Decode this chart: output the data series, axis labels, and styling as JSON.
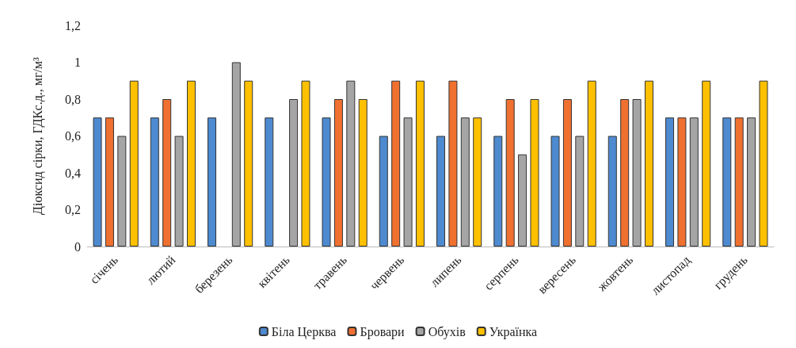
{
  "chart_data": {
    "type": "bar",
    "ylabel": "Діоксид сірки, ГДКс.д., мг/м³",
    "categories": [
      "січень",
      "лютий",
      "березень",
      "квітень",
      "травень",
      "червень",
      "липень",
      "серпень",
      "вересень",
      "жовтень",
      "листопад",
      "грудень"
    ],
    "series": [
      {
        "name": "Біла Церква",
        "color": "#4e8ad0",
        "values": [
          0.7,
          0.7,
          0.7,
          0.7,
          0.7,
          0.6,
          0.6,
          0.6,
          0.6,
          0.6,
          0.7,
          0.7
        ]
      },
      {
        "name": "Бровари",
        "color": "#f07030",
        "values": [
          0.7,
          0.8,
          null,
          null,
          0.8,
          0.9,
          0.9,
          0.8,
          0.8,
          0.8,
          0.7,
          0.7
        ]
      },
      {
        "name": "Обухів",
        "color": "#a5a5a5",
        "values": [
          0.6,
          0.6,
          1.0,
          0.8,
          0.9,
          0.7,
          0.7,
          0.5,
          0.6,
          0.8,
          0.7,
          0.7
        ]
      },
      {
        "name": "Українка",
        "color": "#ffc000",
        "values": [
          0.9,
          0.9,
          0.9,
          0.9,
          0.8,
          0.9,
          0.7,
          0.8,
          0.9,
          0.9,
          0.9,
          0.9
        ]
      }
    ],
    "ylim": [
      0,
      1.2
    ],
    "yticks": [
      0,
      {
        "value": 0.2,
        "label": "0,2"
      },
      {
        "value": 0.4,
        "label": "0,4"
      },
      {
        "value": 0.6,
        "label": "0,6"
      },
      {
        "value": 0.8,
        "label": "0,8"
      },
      1,
      {
        "value": 1.2,
        "label": "1,2"
      }
    ],
    "grid": false,
    "legend": "bottom"
  }
}
